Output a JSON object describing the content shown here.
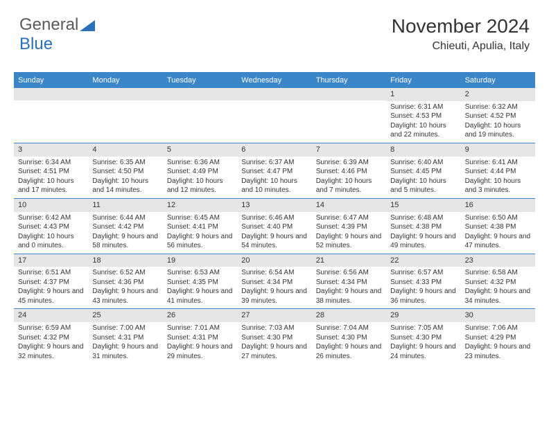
{
  "logo": {
    "text1": "General",
    "text2": "Blue"
  },
  "header": {
    "month": "November 2024",
    "location": "Chieuti, Apulia, Italy"
  },
  "colors": {
    "accent": "#3a86c8",
    "header_text": "#333333",
    "day_bg": "#e6e6e6",
    "logo_gray": "#5a5a5a",
    "logo_blue": "#2970b8"
  },
  "weekdays": [
    "Sunday",
    "Monday",
    "Tuesday",
    "Wednesday",
    "Thursday",
    "Friday",
    "Saturday"
  ],
  "weeks": [
    [
      {
        "empty": true
      },
      {
        "empty": true
      },
      {
        "empty": true
      },
      {
        "empty": true
      },
      {
        "empty": true
      },
      {
        "day": "1",
        "sunrise": "Sunrise: 6:31 AM",
        "sunset": "Sunset: 4:53 PM",
        "daylight": "Daylight: 10 hours and 22 minutes."
      },
      {
        "day": "2",
        "sunrise": "Sunrise: 6:32 AM",
        "sunset": "Sunset: 4:52 PM",
        "daylight": "Daylight: 10 hours and 19 minutes."
      }
    ],
    [
      {
        "day": "3",
        "sunrise": "Sunrise: 6:34 AM",
        "sunset": "Sunset: 4:51 PM",
        "daylight": "Daylight: 10 hours and 17 minutes."
      },
      {
        "day": "4",
        "sunrise": "Sunrise: 6:35 AM",
        "sunset": "Sunset: 4:50 PM",
        "daylight": "Daylight: 10 hours and 14 minutes."
      },
      {
        "day": "5",
        "sunrise": "Sunrise: 6:36 AM",
        "sunset": "Sunset: 4:49 PM",
        "daylight": "Daylight: 10 hours and 12 minutes."
      },
      {
        "day": "6",
        "sunrise": "Sunrise: 6:37 AM",
        "sunset": "Sunset: 4:47 PM",
        "daylight": "Daylight: 10 hours and 10 minutes."
      },
      {
        "day": "7",
        "sunrise": "Sunrise: 6:39 AM",
        "sunset": "Sunset: 4:46 PM",
        "daylight": "Daylight: 10 hours and 7 minutes."
      },
      {
        "day": "8",
        "sunrise": "Sunrise: 6:40 AM",
        "sunset": "Sunset: 4:45 PM",
        "daylight": "Daylight: 10 hours and 5 minutes."
      },
      {
        "day": "9",
        "sunrise": "Sunrise: 6:41 AM",
        "sunset": "Sunset: 4:44 PM",
        "daylight": "Daylight: 10 hours and 3 minutes."
      }
    ],
    [
      {
        "day": "10",
        "sunrise": "Sunrise: 6:42 AM",
        "sunset": "Sunset: 4:43 PM",
        "daylight": "Daylight: 10 hours and 0 minutes."
      },
      {
        "day": "11",
        "sunrise": "Sunrise: 6:44 AM",
        "sunset": "Sunset: 4:42 PM",
        "daylight": "Daylight: 9 hours and 58 minutes."
      },
      {
        "day": "12",
        "sunrise": "Sunrise: 6:45 AM",
        "sunset": "Sunset: 4:41 PM",
        "daylight": "Daylight: 9 hours and 56 minutes."
      },
      {
        "day": "13",
        "sunrise": "Sunrise: 6:46 AM",
        "sunset": "Sunset: 4:40 PM",
        "daylight": "Daylight: 9 hours and 54 minutes."
      },
      {
        "day": "14",
        "sunrise": "Sunrise: 6:47 AM",
        "sunset": "Sunset: 4:39 PM",
        "daylight": "Daylight: 9 hours and 52 minutes."
      },
      {
        "day": "15",
        "sunrise": "Sunrise: 6:48 AM",
        "sunset": "Sunset: 4:38 PM",
        "daylight": "Daylight: 9 hours and 49 minutes."
      },
      {
        "day": "16",
        "sunrise": "Sunrise: 6:50 AM",
        "sunset": "Sunset: 4:38 PM",
        "daylight": "Daylight: 9 hours and 47 minutes."
      }
    ],
    [
      {
        "day": "17",
        "sunrise": "Sunrise: 6:51 AM",
        "sunset": "Sunset: 4:37 PM",
        "daylight": "Daylight: 9 hours and 45 minutes."
      },
      {
        "day": "18",
        "sunrise": "Sunrise: 6:52 AM",
        "sunset": "Sunset: 4:36 PM",
        "daylight": "Daylight: 9 hours and 43 minutes."
      },
      {
        "day": "19",
        "sunrise": "Sunrise: 6:53 AM",
        "sunset": "Sunset: 4:35 PM",
        "daylight": "Daylight: 9 hours and 41 minutes."
      },
      {
        "day": "20",
        "sunrise": "Sunrise: 6:54 AM",
        "sunset": "Sunset: 4:34 PM",
        "daylight": "Daylight: 9 hours and 39 minutes."
      },
      {
        "day": "21",
        "sunrise": "Sunrise: 6:56 AM",
        "sunset": "Sunset: 4:34 PM",
        "daylight": "Daylight: 9 hours and 38 minutes."
      },
      {
        "day": "22",
        "sunrise": "Sunrise: 6:57 AM",
        "sunset": "Sunset: 4:33 PM",
        "daylight": "Daylight: 9 hours and 36 minutes."
      },
      {
        "day": "23",
        "sunrise": "Sunrise: 6:58 AM",
        "sunset": "Sunset: 4:32 PM",
        "daylight": "Daylight: 9 hours and 34 minutes."
      }
    ],
    [
      {
        "day": "24",
        "sunrise": "Sunrise: 6:59 AM",
        "sunset": "Sunset: 4:32 PM",
        "daylight": "Daylight: 9 hours and 32 minutes."
      },
      {
        "day": "25",
        "sunrise": "Sunrise: 7:00 AM",
        "sunset": "Sunset: 4:31 PM",
        "daylight": "Daylight: 9 hours and 31 minutes."
      },
      {
        "day": "26",
        "sunrise": "Sunrise: 7:01 AM",
        "sunset": "Sunset: 4:31 PM",
        "daylight": "Daylight: 9 hours and 29 minutes."
      },
      {
        "day": "27",
        "sunrise": "Sunrise: 7:03 AM",
        "sunset": "Sunset: 4:30 PM",
        "daylight": "Daylight: 9 hours and 27 minutes."
      },
      {
        "day": "28",
        "sunrise": "Sunrise: 7:04 AM",
        "sunset": "Sunset: 4:30 PM",
        "daylight": "Daylight: 9 hours and 26 minutes."
      },
      {
        "day": "29",
        "sunrise": "Sunrise: 7:05 AM",
        "sunset": "Sunset: 4:30 PM",
        "daylight": "Daylight: 9 hours and 24 minutes."
      },
      {
        "day": "30",
        "sunrise": "Sunrise: 7:06 AM",
        "sunset": "Sunset: 4:29 PM",
        "daylight": "Daylight: 9 hours and 23 minutes."
      }
    ]
  ]
}
